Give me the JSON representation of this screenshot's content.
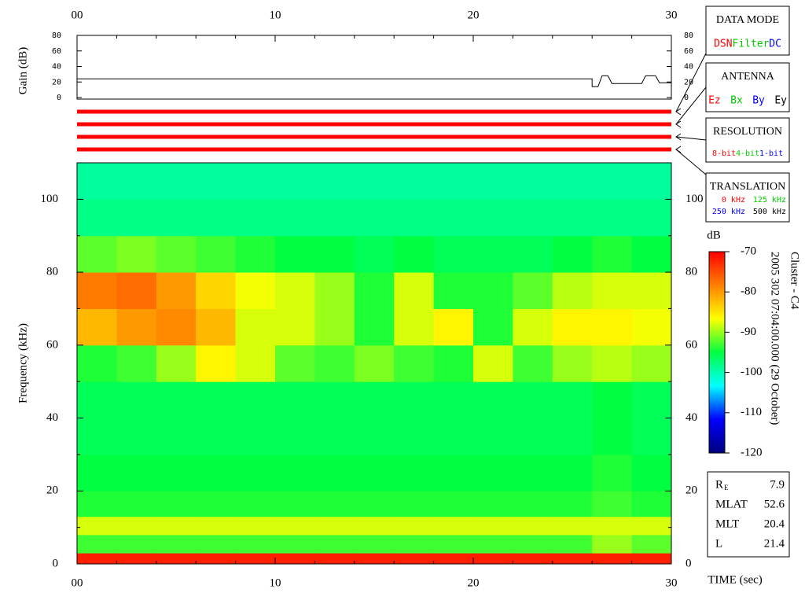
{
  "chart_data": [
    {
      "type": "line",
      "ylabel": "Gain (dB)",
      "color": "#000000",
      "x": [
        0,
        26,
        26,
        26.3,
        26.5,
        26.8,
        27,
        28.5,
        28.7,
        29.2,
        29.4,
        30
      ],
      "values": [
        24,
        24,
        14,
        14,
        28,
        28,
        18,
        18,
        28,
        28,
        19,
        19
      ],
      "xlim": [
        0,
        30
      ],
      "xticks": [
        {
          "value": 0,
          "label": "00"
        },
        10,
        20,
        30
      ],
      "xminorticks": [
        2,
        4,
        6,
        8,
        12,
        14,
        16,
        18,
        22,
        24,
        26,
        28
      ],
      "ylim": [
        0,
        80
      ],
      "yticks": [
        0,
        20,
        40,
        60,
        80
      ]
    },
    {
      "type": "heatmap",
      "ylabel": "Frequency (kHz)",
      "xlabel": "TIME (sec)",
      "x_bins": [
        0,
        2,
        4,
        6,
        8,
        10,
        12,
        14,
        16,
        18,
        20,
        22,
        24,
        26,
        28,
        30
      ],
      "y_bins": [
        0,
        3,
        8,
        13,
        20,
        30,
        40,
        50,
        60,
        70,
        80,
        90,
        100,
        110
      ],
      "values": [
        [
          -72,
          -72,
          -72,
          -72,
          -72,
          -72,
          -72,
          -72,
          -72,
          -72,
          -72,
          -72,
          -72,
          -72,
          -72
        ],
        [
          -93,
          -93,
          -93,
          -93,
          -93,
          -93,
          -93,
          -93,
          -93,
          -93,
          -93,
          -93,
          -93,
          -90,
          -92
        ],
        [
          -88,
          -88,
          -88,
          -88,
          -88,
          -88,
          -88,
          -88,
          -88,
          -88,
          -88,
          -88,
          -88,
          -88,
          -88
        ],
        [
          -94,
          -94,
          -94,
          -94,
          -94,
          -94,
          -94,
          -94,
          -94,
          -94,
          -94,
          -94,
          -94,
          -93,
          -94
        ],
        [
          -95,
          -95,
          -95,
          -95,
          -95,
          -95,
          -95,
          -95,
          -95,
          -95,
          -95,
          -95,
          -95,
          -94,
          -95
        ],
        [
          -96,
          -96,
          -96,
          -96,
          -96,
          -96,
          -96,
          -96,
          -96,
          -96,
          -96,
          -96,
          -96,
          -95,
          -96
        ],
        [
          -96,
          -96,
          -96,
          -96,
          -96,
          -96,
          -96,
          -96,
          -96,
          -96,
          -96,
          -96,
          -96,
          -95,
          -96
        ],
        [
          -94,
          -93,
          -90,
          -86,
          -88,
          -92,
          -93,
          -91,
          -93,
          -94,
          -88,
          -93,
          -90,
          -89,
          -90
        ],
        [
          -82,
          -80,
          -79,
          -82,
          -88,
          -88,
          -90,
          -94,
          -88,
          -86,
          -94,
          -88,
          -86,
          -86,
          -87
        ],
        [
          -78,
          -77,
          -80,
          -84,
          -87,
          -88,
          -90,
          -94,
          -88,
          -94,
          -94,
          -92,
          -89,
          -88,
          -88
        ],
        [
          -92,
          -91,
          -92,
          -93,
          -94,
          -95,
          -95,
          -96,
          -95,
          -96,
          -96,
          -96,
          -95,
          -94,
          -95
        ],
        [
          -98,
          -98,
          -98,
          -98,
          -98,
          -98,
          -98,
          -98,
          -98,
          -98,
          -98,
          -98,
          -98,
          -98,
          -98
        ],
        [
          -99,
          -99,
          -99,
          -99,
          -99,
          -99,
          -99,
          -99,
          -99,
          -99,
          -99,
          -99,
          -99,
          -99,
          -99
        ]
      ],
      "xlim": [
        0,
        30
      ],
      "xticks": [
        {
          "value": 0,
          "label": "00"
        },
        10,
        20,
        30
      ],
      "xminorticks": [
        2,
        4,
        6,
        8,
        12,
        14,
        16,
        18,
        22,
        24,
        26,
        28
      ],
      "ylim": [
        0,
        110
      ],
      "yticks": [
        0,
        20,
        40,
        60,
        80,
        100
      ],
      "yminorticks": [
        10,
        30,
        50,
        70,
        90,
        110
      ],
      "colorbar": {
        "label": "dB",
        "clim": [
          -120,
          -70
        ],
        "ticks": [
          -70,
          -80,
          -90,
          -100,
          -110,
          -120
        ],
        "colormap": [
          "#00007f",
          "#0000ff",
          "#00ffff",
          "#00ff40",
          "#ffff00",
          "#ff8000",
          "#ff0000"
        ]
      },
      "annotations": [
        "2005 302 07:04:00.000 (29 October)",
        "Cluster - C4"
      ]
    }
  ],
  "modes": [
    {
      "title": "DATA MODE",
      "bar_color": "#ff0000",
      "options": [
        {
          "text": "DSN",
          "color": "#ff0000"
        },
        {
          "text": "Filter",
          "color": "#00cc00"
        },
        {
          "text": "DC",
          "color": "#0000ff"
        }
      ]
    },
    {
      "title": "ANTENNA",
      "bar_color": "#ff0000",
      "options": [
        {
          "text": "Ez",
          "color": "#ff0000"
        },
        {
          "text": "Bx",
          "color": "#00cc00"
        },
        {
          "text": "By",
          "color": "#0000ff"
        },
        {
          "text": "Ey",
          "color": "#000000"
        }
      ]
    },
    {
      "title": "RESOLUTION",
      "bar_color": "#ff0000",
      "options": [
        {
          "text": "8-bit",
          "color": "#ff0000"
        },
        {
          "text": "4-bit",
          "color": "#00cc00"
        },
        {
          "text": "1-bit",
          "color": "#0000ff"
        }
      ]
    },
    {
      "title": "TRANSLATION",
      "bar_color": "#ff0000",
      "options": [
        {
          "text": "0 kHz",
          "color": "#ff0000"
        },
        {
          "text": "125 kHz",
          "color": "#00cc00"
        },
        {
          "text": "250 kHz",
          "color": "#0000ff"
        },
        {
          "text": "500 kHz",
          "color": "#000000"
        }
      ]
    }
  ],
  "params": [
    {
      "name": "R",
      "subscript": "E",
      "value": 7.9
    },
    {
      "name": "MLAT",
      "value": 52.6
    },
    {
      "name": "MLT",
      "value": 20.4
    },
    {
      "name": "L",
      "value": 21.4
    }
  ]
}
